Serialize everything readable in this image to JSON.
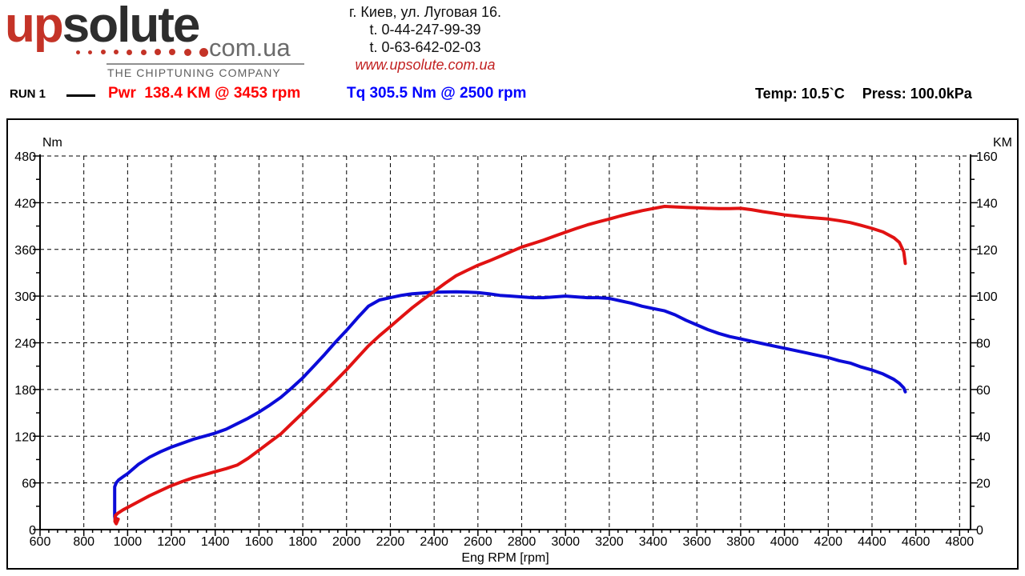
{
  "header": {
    "logo": {
      "word_up": "up",
      "word_solute": "solute",
      "domain": "com.ua",
      "tagline": "THE CHIPTUNING COMPANY"
    },
    "contact": {
      "address": "г. Киев, ул. Луговая 16.",
      "phone1": "t. 0-44-247-99-39",
      "phone2": "t. 0-63-642-02-03",
      "website": "www.upsolute.com.ua"
    }
  },
  "legend": {
    "run_label": "RUN 1",
    "power_result": "Pwr  138.4 KM @ 3453 rpm",
    "torque_result": "Tq 305.5 Nm @ 2500 rpm",
    "temperature": "Temp: 10.5`C",
    "pressure": "Press: 100.0kPa"
  },
  "colors": {
    "power_curve": "#e11212",
    "torque_curve": "#0b0bd8",
    "power_text": "#ff0000",
    "torque_text": "#0000ff",
    "logo_red": "#c43327",
    "axis": "#000000"
  },
  "chart_data": {
    "type": "line",
    "x_label": "Eng RPM [rpm]",
    "grid": "dashed",
    "x_axis": {
      "min": 600,
      "max": 4850,
      "major_step": 200,
      "minor_step": 40,
      "ticks": [
        600,
        800,
        1000,
        1200,
        1400,
        1600,
        1800,
        2000,
        2200,
        2400,
        2600,
        2800,
        3000,
        3200,
        3400,
        3600,
        3800,
        4000,
        4200,
        4400,
        4600,
        4800
      ]
    },
    "left_axis": {
      "unit": "Nm",
      "min": 0,
      "max": 480,
      "major_step": 60,
      "minor_step": 30,
      "ticks": [
        0,
        60,
        120,
        180,
        240,
        300,
        360,
        420,
        480
      ]
    },
    "right_axis": {
      "unit": "KM",
      "min": 0,
      "max": 160,
      "major_step": 20,
      "minor_step": 10,
      "ticks": [
        0,
        20,
        40,
        60,
        80,
        100,
        120,
        140,
        160
      ]
    },
    "series": [
      {
        "name": "Torque",
        "unit": "Nm",
        "axis": "left",
        "color": "#0b0bd8",
        "peak_label": "Tq 305.5 Nm @ 2500 rpm",
        "points": [
          [
            951,
            14
          ],
          [
            944,
            11
          ],
          [
            941,
            17
          ],
          [
            941,
            55
          ],
          [
            948,
            60
          ],
          [
            960,
            64
          ],
          [
            980,
            68
          ],
          [
            1000,
            72
          ],
          [
            1050,
            84
          ],
          [
            1100,
            93
          ],
          [
            1150,
            100
          ],
          [
            1200,
            106
          ],
          [
            1250,
            111
          ],
          [
            1300,
            116
          ],
          [
            1350,
            120
          ],
          [
            1400,
            124
          ],
          [
            1450,
            129
          ],
          [
            1500,
            136
          ],
          [
            1550,
            143
          ],
          [
            1600,
            151
          ],
          [
            1650,
            160
          ],
          [
            1700,
            170
          ],
          [
            1750,
            182
          ],
          [
            1800,
            195
          ],
          [
            1850,
            210
          ],
          [
            1900,
            225
          ],
          [
            1950,
            241
          ],
          [
            2000,
            256
          ],
          [
            2050,
            272
          ],
          [
            2100,
            287
          ],
          [
            2150,
            295
          ],
          [
            2200,
            298
          ],
          [
            2250,
            301
          ],
          [
            2300,
            303
          ],
          [
            2350,
            304
          ],
          [
            2400,
            305
          ],
          [
            2450,
            305.3
          ],
          [
            2500,
            305.5
          ],
          [
            2550,
            305.2
          ],
          [
            2600,
            304.5
          ],
          [
            2650,
            303
          ],
          [
            2700,
            301
          ],
          [
            2750,
            300
          ],
          [
            2800,
            299
          ],
          [
            2850,
            298
          ],
          [
            2900,
            298
          ],
          [
            2950,
            299
          ],
          [
            3000,
            300
          ],
          [
            3050,
            299
          ],
          [
            3100,
            298
          ],
          [
            3150,
            298
          ],
          [
            3200,
            297
          ],
          [
            3250,
            294
          ],
          [
            3300,
            291
          ],
          [
            3350,
            287
          ],
          [
            3400,
            284
          ],
          [
            3453,
            281
          ],
          [
            3500,
            276
          ],
          [
            3550,
            269
          ],
          [
            3600,
            263
          ],
          [
            3650,
            257
          ],
          [
            3700,
            252
          ],
          [
            3750,
            248
          ],
          [
            3800,
            245
          ],
          [
            3850,
            242
          ],
          [
            3900,
            239
          ],
          [
            3950,
            236
          ],
          [
            4000,
            233
          ],
          [
            4050,
            230
          ],
          [
            4100,
            227
          ],
          [
            4150,
            224
          ],
          [
            4200,
            221
          ],
          [
            4250,
            217
          ],
          [
            4300,
            214
          ],
          [
            4350,
            209
          ],
          [
            4400,
            205
          ],
          [
            4450,
            200
          ],
          [
            4500,
            193
          ],
          [
            4525,
            188
          ],
          [
            4545,
            182
          ],
          [
            4552,
            177
          ]
        ]
      },
      {
        "name": "Power",
        "unit": "KM",
        "axis": "right",
        "color": "#e11212",
        "peak_label": "Pwr 138.4 KM @ 3453 rpm",
        "points": [
          [
            957,
            4.5
          ],
          [
            948,
            2.5
          ],
          [
            942,
            3.5
          ],
          [
            944,
            6
          ],
          [
            955,
            7
          ],
          [
            980,
            8.5
          ],
          [
            1000,
            9.5
          ],
          [
            1050,
            12
          ],
          [
            1100,
            14.5
          ],
          [
            1150,
            16.7
          ],
          [
            1200,
            18.8
          ],
          [
            1250,
            20.6
          ],
          [
            1300,
            22.2
          ],
          [
            1350,
            23.5
          ],
          [
            1400,
            24.8
          ],
          [
            1450,
            26.1
          ],
          [
            1500,
            27.6
          ],
          [
            1550,
            30.5
          ],
          [
            1600,
            34
          ],
          [
            1650,
            37.5
          ],
          [
            1700,
            41
          ],
          [
            1750,
            45.5
          ],
          [
            1800,
            50
          ],
          [
            1850,
            54.5
          ],
          [
            1900,
            59
          ],
          [
            1950,
            63.7
          ],
          [
            2000,
            68.5
          ],
          [
            2050,
            73.6
          ],
          [
            2100,
            78.7
          ],
          [
            2150,
            83
          ],
          [
            2200,
            87
          ],
          [
            2250,
            91
          ],
          [
            2300,
            95
          ],
          [
            2350,
            98.6
          ],
          [
            2400,
            102
          ],
          [
            2450,
            105.5
          ],
          [
            2500,
            108.7
          ],
          [
            2550,
            111
          ],
          [
            2600,
            113.2
          ],
          [
            2650,
            115
          ],
          [
            2700,
            117
          ],
          [
            2750,
            119
          ],
          [
            2800,
            121
          ],
          [
            2850,
            122.5
          ],
          [
            2900,
            124
          ],
          [
            2950,
            125.7
          ],
          [
            3000,
            127.4
          ],
          [
            3050,
            129
          ],
          [
            3100,
            130.5
          ],
          [
            3150,
            131.8
          ],
          [
            3200,
            133
          ],
          [
            3250,
            134.3
          ],
          [
            3300,
            135.5
          ],
          [
            3350,
            136.6
          ],
          [
            3400,
            137.5
          ],
          [
            3453,
            138.4
          ],
          [
            3500,
            138.2
          ],
          [
            3550,
            138
          ],
          [
            3600,
            137.8
          ],
          [
            3650,
            137.6
          ],
          [
            3700,
            137.5
          ],
          [
            3750,
            137.5
          ],
          [
            3800,
            137.6
          ],
          [
            3850,
            137
          ],
          [
            3900,
            136.2
          ],
          [
            3950,
            135.5
          ],
          [
            4000,
            134.8
          ],
          [
            4050,
            134.3
          ],
          [
            4100,
            133.8
          ],
          [
            4150,
            133.4
          ],
          [
            4200,
            133
          ],
          [
            4250,
            132.3
          ],
          [
            4300,
            131.5
          ],
          [
            4350,
            130.3
          ],
          [
            4400,
            129
          ],
          [
            4450,
            127.5
          ],
          [
            4500,
            125
          ],
          [
            4525,
            123
          ],
          [
            4545,
            119
          ],
          [
            4552,
            114
          ]
        ]
      }
    ]
  }
}
